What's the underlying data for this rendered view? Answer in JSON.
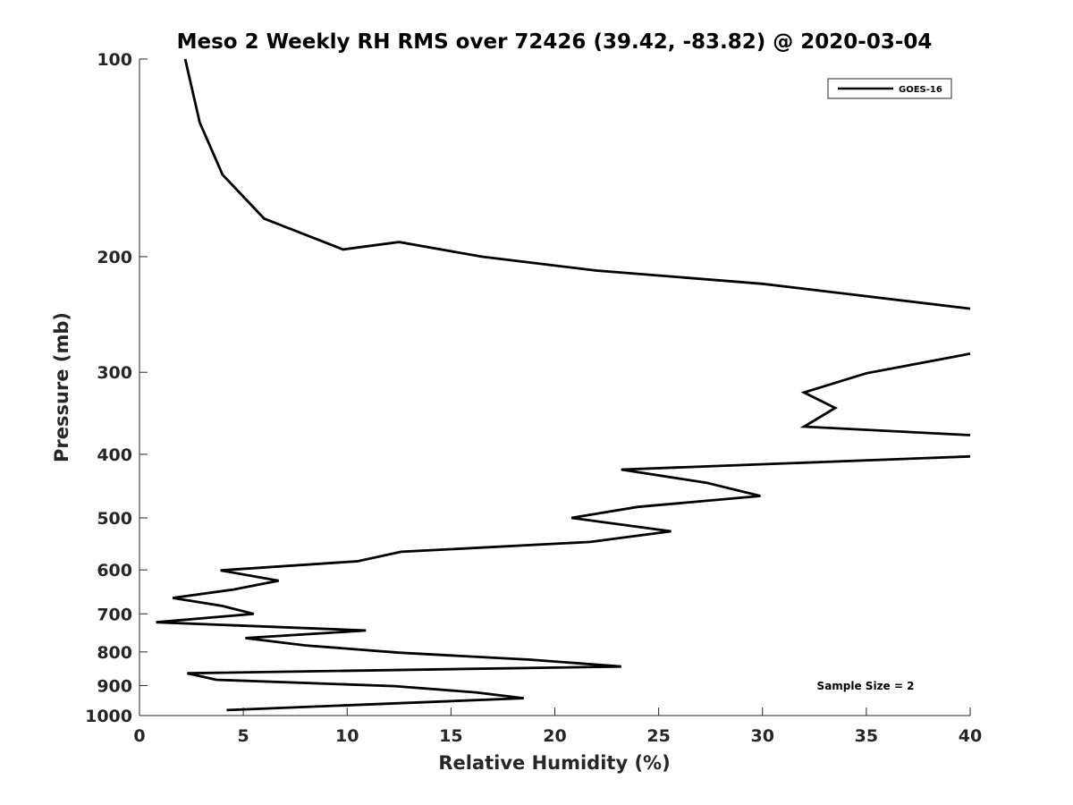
{
  "chart_data": {
    "type": "line",
    "title": "Meso 2 Weekly RH RMS over 72426 (39.42, -83.82) @ 2020-03-04",
    "xlabel": "Relative Humidity (%)",
    "ylabel": "Pressure (mb)",
    "xlim": [
      0,
      40
    ],
    "ylim": [
      100,
      1000
    ],
    "y_scale": "log",
    "y_reversed": true,
    "grid": false,
    "legend_position": "top-right",
    "x_ticks": [
      0,
      5,
      10,
      15,
      20,
      25,
      30,
      35,
      40
    ],
    "x_tick_labels": [
      "0",
      "5",
      "10",
      "15",
      "20",
      "25",
      "30",
      "35",
      "40"
    ],
    "y_ticks": [
      100,
      200,
      300,
      400,
      500,
      600,
      700,
      800,
      900,
      1000
    ],
    "y_tick_labels": [
      "100",
      "200",
      "300",
      "400",
      "500",
      "600",
      "700",
      "800",
      "900",
      "1000"
    ],
    "annotation": "Sample Size = 2",
    "series": [
      {
        "name": "GOES-16",
        "color": "#000000",
        "points": [
          {
            "x": 2.2,
            "p": 100
          },
          {
            "x": 2.9,
            "p": 125
          },
          {
            "x": 4.0,
            "p": 150
          },
          {
            "x": 6.0,
            "p": 175
          },
          {
            "x": 9.8,
            "p": 195
          },
          {
            "x": 12.5,
            "p": 190
          },
          {
            "x": 16.5,
            "p": 200
          },
          {
            "x": 22.0,
            "p": 210
          },
          {
            "x": 30.0,
            "p": 220
          },
          {
            "x": 40.0,
            "p": 240
          },
          {
            "x": null,
            "p": null
          },
          {
            "x": 40.0,
            "p": 281
          },
          {
            "x": 39.0,
            "p": 285
          },
          {
            "x": 35.0,
            "p": 301
          },
          {
            "x": 32.0,
            "p": 322
          },
          {
            "x": 33.5,
            "p": 340
          },
          {
            "x": 32.0,
            "p": 363
          },
          {
            "x": 40.0,
            "p": 374
          },
          {
            "x": null,
            "p": null
          },
          {
            "x": 40.0,
            "p": 403
          },
          {
            "x": 23.2,
            "p": 422
          },
          {
            "x": 27.3,
            "p": 442
          },
          {
            "x": 29.9,
            "p": 463
          },
          {
            "x": 24.0,
            "p": 481
          },
          {
            "x": 20.8,
            "p": 500
          },
          {
            "x": 25.6,
            "p": 524
          },
          {
            "x": 21.7,
            "p": 544
          },
          {
            "x": 12.6,
            "p": 563
          },
          {
            "x": 10.5,
            "p": 582
          },
          {
            "x": 3.9,
            "p": 601
          },
          {
            "x": 6.7,
            "p": 623
          },
          {
            "x": 4.5,
            "p": 643
          },
          {
            "x": 1.6,
            "p": 662
          },
          {
            "x": 4.0,
            "p": 681
          },
          {
            "x": 5.5,
            "p": 700
          },
          {
            "x": 0.8,
            "p": 721
          },
          {
            "x": 10.9,
            "p": 742
          },
          {
            "x": 5.1,
            "p": 762
          },
          {
            "x": 8.0,
            "p": 782
          },
          {
            "x": 12.5,
            "p": 802
          },
          {
            "x": 18.8,
            "p": 822
          },
          {
            "x": 23.2,
            "p": 842
          },
          {
            "x": 2.3,
            "p": 862
          },
          {
            "x": 3.7,
            "p": 882
          },
          {
            "x": 12.3,
            "p": 902
          },
          {
            "x": 16.2,
            "p": 922
          },
          {
            "x": 18.5,
            "p": 941
          },
          {
            "x": 4.2,
            "p": 981
          }
        ]
      }
    ]
  }
}
